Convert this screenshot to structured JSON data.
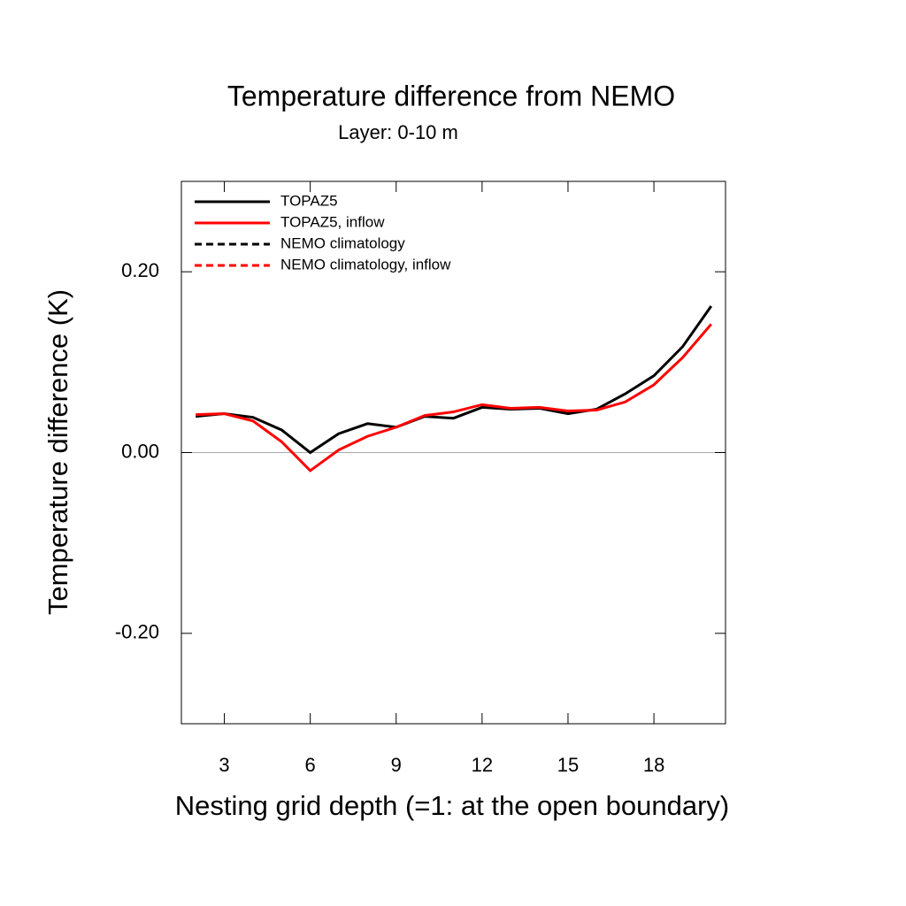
{
  "chart_data": {
    "type": "line",
    "title": "Temperature difference from NEMO",
    "subtitle": "Layer: 0-10 m",
    "xlabel": "Nesting grid depth (=1: at the open boundary)",
    "ylabel": "Temperature difference (K)",
    "x": [
      2,
      3,
      4,
      5,
      6,
      7,
      8,
      9,
      10,
      11,
      12,
      13,
      14,
      15,
      16,
      17,
      18,
      19,
      20
    ],
    "series": [
      {
        "name": "TOPAZ5",
        "color": "#000000",
        "dash": false,
        "values": [
          0.04,
          0.043,
          0.039,
          0.025,
          0.0,
          0.021,
          0.032,
          0.028,
          0.04,
          0.038,
          0.05,
          0.048,
          0.049,
          0.043,
          0.048,
          0.065,
          0.085,
          0.117,
          0.162
        ]
      },
      {
        "name": "TOPAZ5, inflow",
        "color": "#ff0000",
        "dash": false,
        "values": [
          0.042,
          0.043,
          0.035,
          0.012,
          -0.02,
          0.003,
          0.018,
          0.028,
          0.041,
          0.045,
          0.053,
          0.049,
          0.05,
          0.046,
          0.047,
          0.056,
          0.075,
          0.105,
          0.142
        ]
      },
      {
        "name": "NEMO climatology",
        "color": "#000000",
        "dash": true,
        "values": [
          null,
          null,
          null,
          null,
          null,
          null,
          null,
          null,
          null,
          null,
          null,
          null,
          null,
          null,
          null,
          null,
          null,
          null,
          null
        ]
      },
      {
        "name": "NEMO climatology, inflow",
        "color": "#ff0000",
        "dash": true,
        "values": [
          null,
          null,
          null,
          null,
          null,
          null,
          null,
          null,
          null,
          null,
          null,
          null,
          null,
          null,
          null,
          null,
          null,
          null,
          null
        ]
      }
    ],
    "xlim": [
      1.5,
      20.5
    ],
    "xticks": [
      3,
      6,
      9,
      12,
      15,
      18
    ],
    "ylim": [
      -0.3,
      0.3
    ],
    "yticks": [
      {
        "value": -0.2,
        "label": "-0.20"
      },
      {
        "value": 0,
        "label": "0.00"
      },
      {
        "value": 0.2,
        "label": "0.20"
      }
    ],
    "legend": "upper left"
  }
}
